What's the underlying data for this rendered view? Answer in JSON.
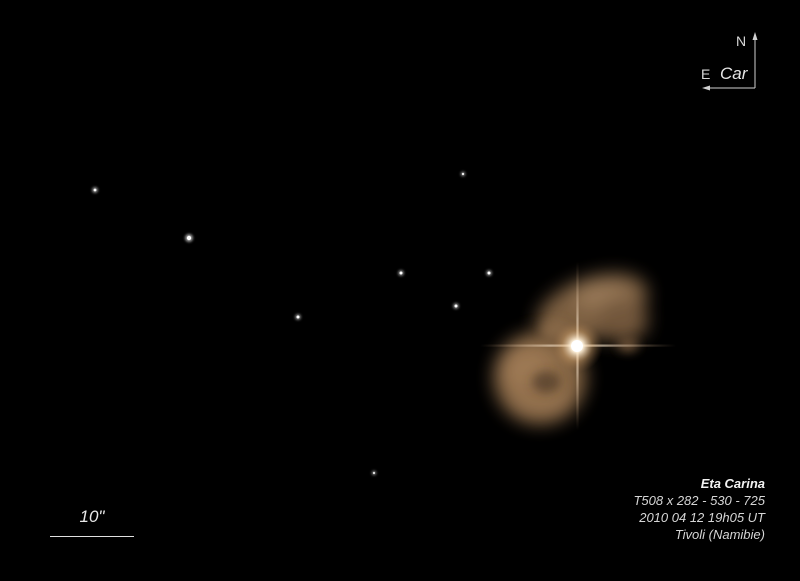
{
  "compass": {
    "north_label": "N",
    "east_label": "E",
    "constellation": "Car"
  },
  "scale_bar": {
    "label": "10\""
  },
  "caption": {
    "title": "Eta Carina",
    "line1": "T508 x 282 - 530 - 725",
    "line2": "2010 04 12  19h05 UT",
    "line3": "Tivoli  (Namibie)"
  },
  "colors": {
    "background": "#000000",
    "nebula": "#a8835c",
    "star_core": "#fff6e6"
  }
}
